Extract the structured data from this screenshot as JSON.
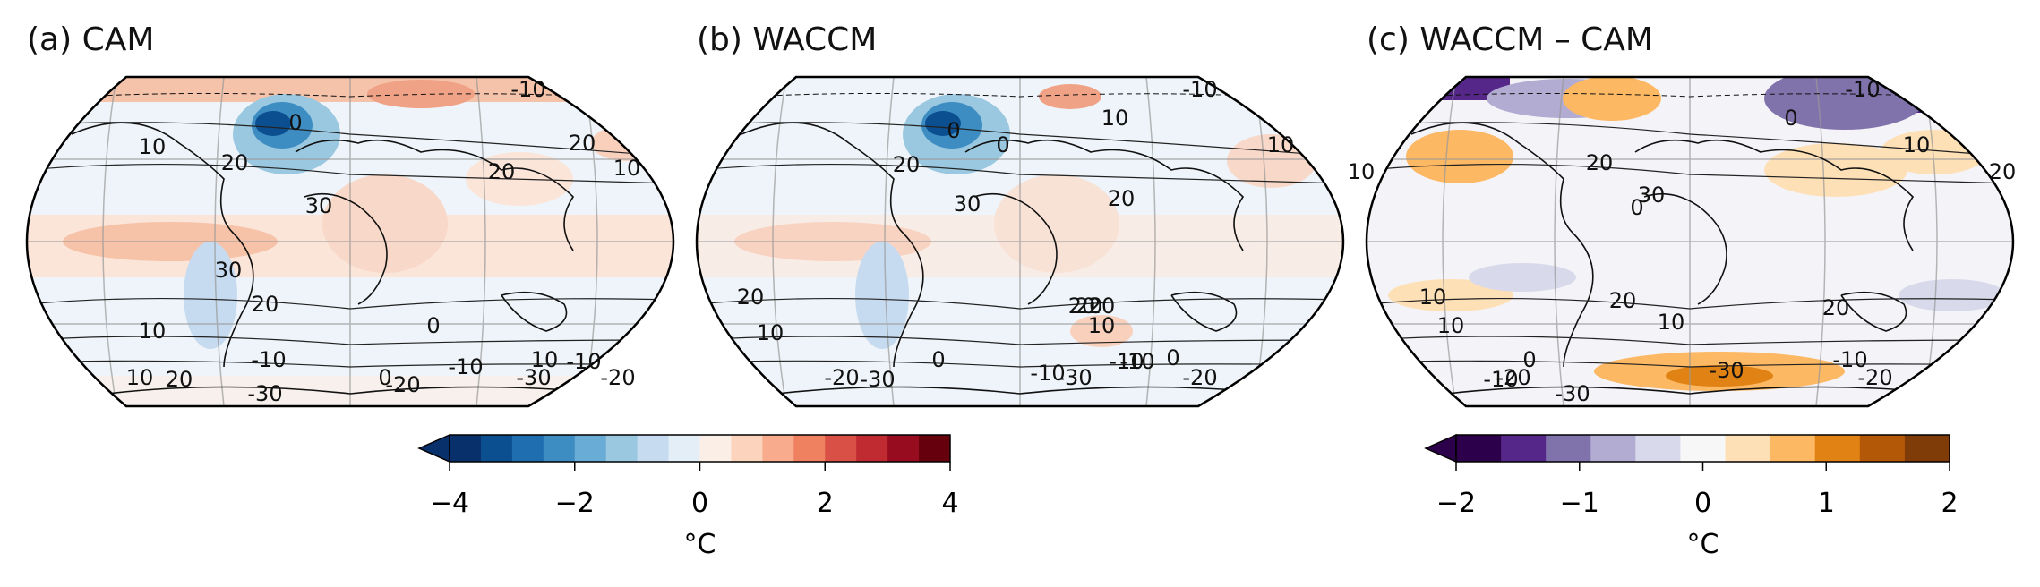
{
  "panels": [
    {
      "title": "(a) CAM",
      "palette": "diverging-red-blue",
      "contour_labels": [
        "-10",
        "0",
        "10",
        "20",
        "30",
        "20",
        "10",
        "20",
        "30",
        "20",
        "10",
        "0",
        "-10",
        "10",
        "20",
        "10",
        "0",
        "-10",
        "-20",
        "-30",
        "-30",
        "-20",
        "-10"
      ]
    },
    {
      "title": "(b) WACCM",
      "palette": "diverging-red-blue",
      "contour_labels": [
        "-10",
        "0",
        "10",
        "20",
        "0",
        "20",
        "30",
        "10",
        "20",
        "20",
        "10",
        "20",
        "10",
        "0",
        "-10",
        "20",
        "10",
        "0",
        "-10",
        "-20",
        "-30",
        "-30",
        "-20",
        "-10"
      ]
    },
    {
      "title": "(c) WACCM – CAM",
      "palette": "diverging-purple-orange",
      "contour_labels": [
        "-10",
        "0",
        "10",
        "20",
        "30",
        "20",
        "10",
        "0",
        "20",
        "10",
        "20",
        "10",
        "0",
        "-10",
        "-20",
        "-30",
        "-30",
        "-20",
        "-10"
      ]
    }
  ],
  "colorbars": [
    {
      "ticks": [
        "−4",
        "−2",
        "0",
        "2",
        "4"
      ],
      "unit": "°C",
      "colors": [
        "#08306b",
        "#0b4f91",
        "#1f6eb0",
        "#3d8dc3",
        "#69acd5",
        "#9ac8e0",
        "#c6dbef",
        "#e4eef6",
        "#fbeee6",
        "#fcd3bc",
        "#f8ac8d",
        "#ef8060",
        "#d95046",
        "#c02a31",
        "#980c20",
        "#67000d"
      ]
    },
    {
      "ticks": [
        "−2",
        "−1",
        "0",
        "1",
        "2"
      ],
      "unit": "°C",
      "colors": [
        "#2d004b",
        "#542788",
        "#8073ac",
        "#b2abd2",
        "#d8daeb",
        "#f7f7f7",
        "#fee0b6",
        "#fdb863",
        "#e08214",
        "#b35806",
        "#7f3b08"
      ]
    }
  ]
}
